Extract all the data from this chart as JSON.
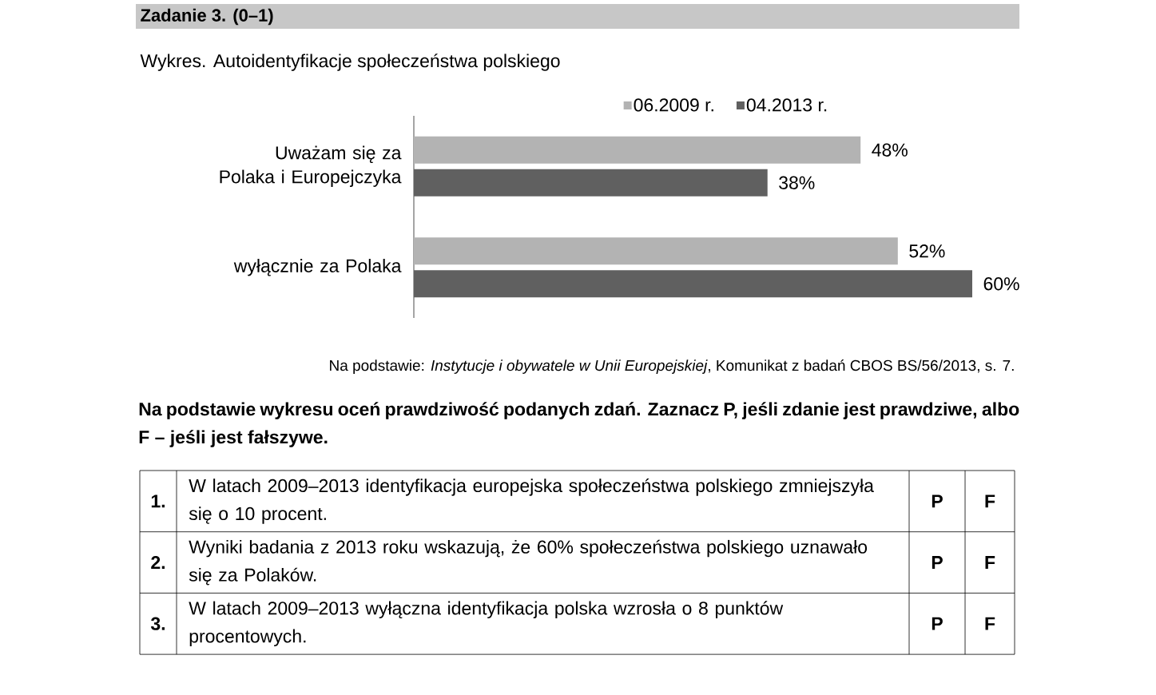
{
  "chart_data": {
    "type": "bar",
    "orientation": "horizontal",
    "title": "Wykres. Autoidentyfikacje społeczeństwa polskiego",
    "categories": [
      "Uważam się za Polaka i Europejczyka",
      "wyłącznie za Polaka"
    ],
    "series": [
      {
        "name": "06.2009 r.",
        "color": "#b3b3b3",
        "values": [
          48,
          52
        ],
        "value_labels": [
          "48%",
          "52%"
        ]
      },
      {
        "name": "04.2013 r.",
        "color": "#606060",
        "values": [
          38,
          60
        ],
        "value_labels": [
          "38%",
          "60%"
        ]
      }
    ],
    "legend": "top",
    "annotations": [
      "Zadanie 3. (0–1)",
      "Na podstawie: *Instytucje i obywatele w Unii Europejskiej*, Komunikat z badań CBOS BS/56/2013, s. 7.",
      "Na podstawie wykresu oceń prawdziwość podanych zdań. Zaznacz P, jeśli zdanie jest prawdziwe, albo F – jeśli jest fałszywe.",
      "1.",
      "W latach 2009–2013 identyfikacja europejska społeczeństwa polskiego zmniejszyła się o 10 procent.",
      "P",
      "F",
      "2.",
      "Wyniki badania z 2013 roku wskazują, że 60% społeczeństwa polskiego uznawało się za Polaków.",
      "P",
      "F",
      "3.",
      "W latach 2009–2013 wyłączna identyfikacja polska wzrosła o 8 punktów procentowych.",
      "P",
      "F"
    ]
  }
}
